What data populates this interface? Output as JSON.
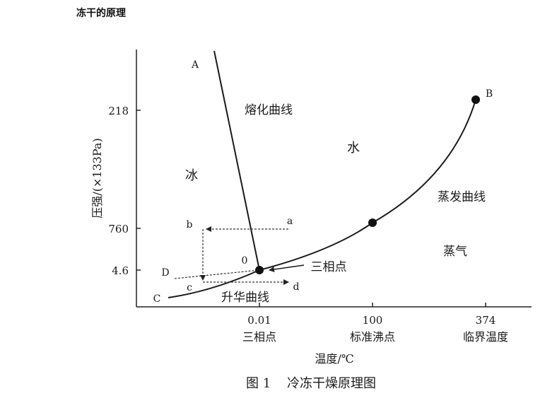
{
  "page_title": "冻干的原理",
  "figure": {
    "caption": "图 1    冷冻干燥原理图",
    "y_axis_label": "压强/(×133Pa)",
    "x_axis_label": "温度/℃",
    "y_ticks": [
      "218",
      "760",
      "4.6"
    ],
    "x_ticks": [
      {
        "value": "0.01",
        "name": "三相点"
      },
      {
        "value": "100",
        "name": "标准沸点"
      },
      {
        "value": "374",
        "name": "临界温度"
      }
    ],
    "regions": {
      "ice": "冰",
      "water": "水",
      "vapor": "蒸气"
    },
    "curves": {
      "melting": "熔化曲线",
      "vaporization": "蒸发曲线",
      "sublimation": "升华曲线"
    },
    "points": {
      "A": "A",
      "B": "B",
      "C": "C",
      "D": "D",
      "O": "0"
    },
    "path_points": {
      "a": "a",
      "b": "b",
      "c": "c",
      "d": "d"
    },
    "triple_point_label": "三相点"
  }
}
